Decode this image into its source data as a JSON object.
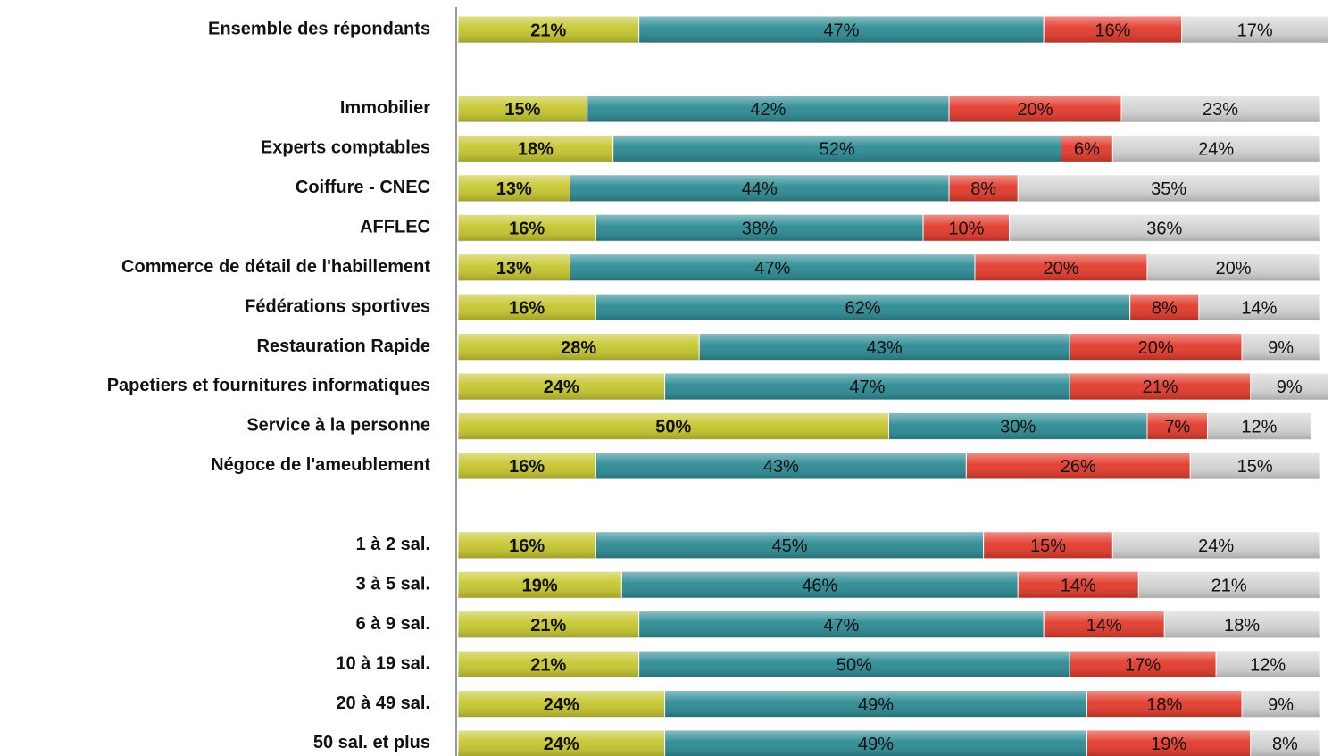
{
  "chart_data": {
    "type": "stacked-bar-horizontal",
    "categories": [
      "Ensemble des répondants",
      null,
      "Immobilier",
      "Experts comptables",
      "Coiffure - CNEC",
      "AFFLEC",
      "Commerce de détail de l'habillement",
      "Fédérations sportives",
      "Restauration Rapide",
      "Papetiers et fournitures informatiques",
      "Service à la personne",
      "Négoce de l'ameublement",
      null,
      "1 à 2 sal.",
      "3 à 5 sal.",
      "6 à 9 sal.",
      "10 à 19 sal.",
      "20 à 49 sal.",
      "50 sal. et plus"
    ],
    "xlim": [
      0,
      100
    ],
    "series": [
      {
        "color": "#c6c62e",
        "values": [
          21,
          null,
          15,
          18,
          13,
          16,
          13,
          16,
          28,
          24,
          50,
          16,
          null,
          16,
          19,
          21,
          21,
          24,
          24
        ],
        "value_labels": [
          "21%",
          null,
          "15%",
          "18%",
          "13%",
          "16%",
          "13%",
          "16%",
          "28%",
          "24%",
          "50%",
          "16%",
          null,
          "16%",
          "19%",
          "21%",
          "21%",
          "24%",
          "24%"
        ]
      },
      {
        "color": "#2b8a93",
        "values": [
          47,
          null,
          42,
          52,
          44,
          38,
          47,
          62,
          43,
          47,
          30,
          43,
          null,
          45,
          46,
          47,
          50,
          49,
          49
        ],
        "value_labels": [
          "47%",
          null,
          "42%",
          "52%",
          "44%",
          "38%",
          "47%",
          "62%",
          "43%",
          "47%",
          "30%",
          "43%",
          null,
          "45%",
          "46%",
          "47%",
          "50%",
          "49%",
          "49%"
        ]
      },
      {
        "color": "#e2392a",
        "values": [
          16,
          null,
          20,
          6,
          8,
          10,
          20,
          8,
          20,
          21,
          7,
          26,
          null,
          15,
          14,
          14,
          17,
          18,
          19
        ],
        "value_labels": [
          "16%",
          null,
          "20%",
          "6%",
          "8%",
          "10%",
          "20%",
          "8%",
          "20%",
          "21%",
          "7%",
          "26%",
          null,
          "15%",
          "14%",
          "14%",
          "17%",
          "18%",
          "19%"
        ]
      },
      {
        "color": "#d3d3d3",
        "values": [
          17,
          null,
          23,
          24,
          35,
          36,
          20,
          14,
          9,
          9,
          12,
          15,
          null,
          24,
          21,
          18,
          12,
          9,
          8
        ],
        "value_labels": [
          "17%",
          null,
          "23%",
          "24%",
          "35%",
          "36%",
          "20%",
          "14%",
          "9%",
          "9%",
          "12%",
          "15%",
          null,
          "24%",
          "21%",
          "18%",
          "12%",
          "9%",
          "8%"
        ]
      }
    ]
  }
}
